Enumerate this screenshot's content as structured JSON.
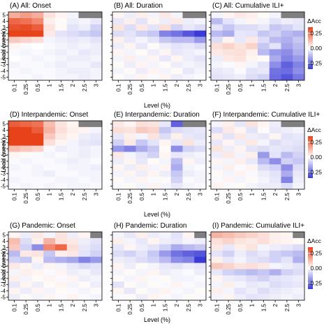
{
  "chart_data": {
    "type": "heatmap",
    "x_ticks": [
      "0.1",
      "0.25",
      "0.5",
      "1",
      "1.5",
      "2",
      "2.5",
      "3"
    ],
    "y_ticks": [
      "5",
      "4",
      "3",
      "2",
      "1",
      "0",
      "-1",
      "-2",
      "-3",
      "-4",
      "-5"
    ],
    "xlabel": "Level (%)",
    "ylabel": "Lead (week)",
    "legend": {
      "title": "ΔAcc",
      "range": [
        -0.35,
        0.35
      ],
      "ticks": [
        "0.25",
        "0.00",
        "-0.25"
      ],
      "tick_values": [
        0.25,
        0.0,
        -0.25
      ],
      "colors": {
        "low": "#3a3ad6",
        "mid": "#ffffff",
        "high": "#e8421a",
        "missing": "#7f7f7f"
      }
    },
    "panels": [
      {
        "title": "(A) All: Onset",
        "values": [
          [
            0.15,
            0.18,
            0.15,
            0.05,
            0.02,
            -0.02,
            null,
            null
          ],
          [
            0.28,
            0.26,
            0.22,
            0.03,
            0.01,
            -0.03,
            -0.02,
            -0.04
          ],
          [
            0.32,
            0.33,
            0.3,
            0.05,
            0.01,
            -0.05,
            -0.03,
            -0.08
          ],
          [
            0.36,
            0.37,
            0.35,
            0.04,
            -0.05,
            -0.06,
            -0.08,
            -0.1
          ],
          [
            0.1,
            0.08,
            0.06,
            -0.02,
            -0.03,
            -0.04,
            -0.03,
            -0.05
          ],
          [
            0.02,
            -0.01,
            0.0,
            -0.01,
            -0.02,
            -0.03,
            -0.02,
            -0.03
          ],
          [
            -0.01,
            -0.02,
            -0.01,
            -0.02,
            -0.03,
            -0.02,
            -0.04,
            -0.03
          ],
          [
            0.0,
            -0.01,
            -0.02,
            -0.01,
            -0.02,
            -0.03,
            -0.03,
            -0.02
          ],
          [
            -0.02,
            -0.01,
            -0.01,
            -0.02,
            -0.03,
            -0.02,
            -0.02,
            -0.04
          ],
          [
            -0.01,
            -0.02,
            -0.01,
            -0.01,
            -0.02,
            -0.03,
            -0.03,
            -0.02
          ],
          [
            -0.01,
            -0.01,
            -0.02,
            -0.01,
            -0.02,
            -0.02,
            -0.03,
            -0.02
          ]
        ]
      },
      {
        "title": "(B) All: Duration",
        "values": [
          [
            0.02,
            -0.03,
            0.03,
            -0.02,
            0.04,
            -0.02,
            null,
            null
          ],
          [
            -0.04,
            0.03,
            -0.05,
            0.02,
            -0.03,
            0.04,
            -0.03,
            -0.02
          ],
          [
            0.05,
            -0.06,
            0.04,
            -0.05,
            0.06,
            -0.08,
            -0.04,
            -0.06
          ],
          [
            -0.06,
            -0.05,
            -0.08,
            -0.1,
            -0.22,
            -0.25,
            -0.3,
            -0.35
          ],
          [
            0.03,
            -0.04,
            -0.02,
            -0.05,
            -0.1,
            -0.12,
            -0.12,
            -0.18
          ],
          [
            -0.03,
            0.02,
            -0.04,
            0.01,
            -0.03,
            -0.05,
            -0.04,
            -0.06
          ],
          [
            0.02,
            -0.02,
            0.01,
            -0.03,
            0.02,
            -0.04,
            -0.03,
            -0.02
          ],
          [
            -0.02,
            0.03,
            -0.02,
            0.02,
            -0.04,
            0.02,
            -0.03,
            -0.05
          ],
          [
            0.01,
            -0.03,
            0.02,
            -0.02,
            0.01,
            -0.03,
            -0.02,
            -0.03
          ],
          [
            -0.02,
            0.01,
            -0.03,
            0.02,
            -0.02,
            0.01,
            -0.04,
            -0.02
          ],
          [
            0.01,
            -0.02,
            0.02,
            -0.01,
            0.02,
            -0.03,
            -0.02,
            -0.01
          ]
        ]
      },
      {
        "title": "(C) All: Cumulative ILI+",
        "values": [
          [
            -0.02,
            0.02,
            0.04,
            0.03,
            0.01,
            -0.02,
            null,
            null
          ],
          [
            -0.12,
            -0.05,
            -0.02,
            0.02,
            -0.02,
            -0.05,
            -0.03,
            -0.04
          ],
          [
            -0.05,
            -0.1,
            -0.06,
            -0.06,
            -0.04,
            -0.1,
            -0.08,
            -0.05
          ],
          [
            -0.12,
            -0.15,
            -0.04,
            -0.05,
            -0.1,
            -0.08,
            -0.12,
            -0.14
          ],
          [
            -0.06,
            0.02,
            -0.04,
            0.04,
            -0.06,
            -0.12,
            -0.14,
            -0.1
          ],
          [
            0.06,
            0.08,
            0.05,
            0.08,
            -0.1,
            -0.05,
            -0.16,
            -0.12
          ],
          [
            0.04,
            0.05,
            0.06,
            0.03,
            -0.12,
            -0.18,
            -0.2,
            -0.14
          ],
          [
            -0.03,
            0.04,
            0.05,
            0.02,
            0.01,
            -0.15,
            -0.22,
            -0.18
          ],
          [
            -0.02,
            -0.01,
            0.02,
            -0.02,
            -0.05,
            -0.2,
            -0.28,
            -0.22
          ],
          [
            -0.04,
            -0.03,
            -0.01,
            -0.05,
            -0.04,
            -0.25,
            -0.26,
            -0.2
          ],
          [
            -0.05,
            -0.04,
            -0.03,
            -0.06,
            -0.08,
            -0.26,
            -0.3,
            -0.24
          ]
        ]
      },
      {
        "title": "(D) Interpandemic: Onset",
        "values": [
          [
            0.3,
            0.28,
            0.26,
            0.12,
            0.05,
            0.02,
            null,
            null
          ],
          [
            0.36,
            0.38,
            0.3,
            0.14,
            0.06,
            0.03,
            0.02,
            -0.02
          ],
          [
            0.38,
            0.4,
            0.36,
            0.1,
            0.04,
            0.02,
            -0.03,
            -0.04
          ],
          [
            0.4,
            0.42,
            0.38,
            0.06,
            0.02,
            -0.02,
            -0.04,
            -0.05
          ],
          [
            0.12,
            0.1,
            0.08,
            -0.01,
            -0.03,
            -0.02,
            -0.03,
            -0.02
          ],
          [
            0.02,
            0.01,
            -0.01,
            -0.02,
            -0.01,
            -0.02,
            -0.03,
            -0.02
          ],
          [
            -0.01,
            -0.02,
            -0.01,
            -0.01,
            -0.02,
            -0.03,
            -0.02,
            -0.01
          ],
          [
            -0.02,
            -0.01,
            -0.02,
            -0.01,
            -0.01,
            -0.02,
            -0.02,
            -0.03
          ],
          [
            -0.01,
            -0.01,
            -0.02,
            -0.03,
            -0.01,
            -0.01,
            -0.02,
            -0.02
          ],
          [
            -0.02,
            -0.01,
            -0.01,
            -0.01,
            -0.02,
            -0.02,
            -0.01,
            -0.02
          ],
          [
            -0.01,
            -0.02,
            -0.01,
            -0.02,
            -0.01,
            -0.02,
            -0.02,
            -0.01
          ]
        ]
      },
      {
        "title": "(E) Interpandemic: Duration",
        "values": [
          [
            0.04,
            0.02,
            0.06,
            0.05,
            -0.04,
            -0.28,
            null,
            null
          ],
          [
            0.06,
            0.05,
            0.1,
            0.08,
            -0.1,
            -0.06,
            -0.05,
            -0.04
          ],
          [
            -0.04,
            0.03,
            -0.02,
            0.05,
            -0.06,
            0.03,
            -0.04,
            -0.05
          ],
          [
            -0.08,
            0.04,
            -0.1,
            -0.05,
            0.02,
            -0.04,
            0.05,
            -0.03
          ],
          [
            -0.18,
            -0.22,
            -0.15,
            -0.1,
            0.01,
            -0.2,
            -0.08,
            -0.06
          ],
          [
            0.04,
            -0.02,
            -0.05,
            -0.08,
            0.02,
            -0.04,
            -0.03,
            -0.02
          ],
          [
            -0.03,
            0.02,
            -0.04,
            0.01,
            -0.02,
            -0.12,
            0.02,
            -0.03
          ],
          [
            0.02,
            -0.03,
            0.03,
            -0.02,
            0.02,
            -0.15,
            -0.02,
            -0.01
          ],
          [
            -0.02,
            0.02,
            -0.03,
            0.02,
            -0.03,
            -0.1,
            -0.03,
            -0.02
          ],
          [
            0.01,
            -0.02,
            0.02,
            -0.01,
            0.01,
            -0.08,
            -0.01,
            -0.02
          ],
          [
            -0.01,
            0.01,
            -0.02,
            0.02,
            -0.02,
            -0.04,
            -0.02,
            -0.01
          ]
        ]
      },
      {
        "title": "(F) Interpandemic: Cumulative ILI+",
        "values": [
          [
            -0.02,
            0.03,
            -0.04,
            0.05,
            0.02,
            -0.03,
            null,
            null
          ],
          [
            -0.06,
            0.04,
            0.02,
            -0.05,
            0.01,
            -0.04,
            -0.03,
            -0.02
          ],
          [
            0.03,
            -0.05,
            0.04,
            -0.03,
            -0.04,
            0.02,
            -0.05,
            -0.04
          ],
          [
            -0.04,
            0.02,
            -0.03,
            0.04,
            -0.02,
            -0.06,
            -0.04,
            -0.05
          ],
          [
            0.05,
            -0.03,
            0.02,
            -0.05,
            -0.06,
            -0.04,
            -0.05,
            -0.06
          ],
          [
            -0.03,
            0.04,
            -0.02,
            0.03,
            -0.18,
            -0.05,
            -0.12,
            -0.08
          ],
          [
            0.02,
            -0.02,
            0.03,
            -0.04,
            -0.12,
            -0.2,
            -0.08,
            -0.1
          ],
          [
            -0.02,
            0.03,
            -0.01,
            0.02,
            -0.06,
            -0.08,
            -0.2,
            -0.06
          ],
          [
            0.01,
            -0.02,
            0.02,
            -0.01,
            -0.03,
            -0.05,
            -0.15,
            -0.04
          ],
          [
            -0.01,
            0.02,
            -0.02,
            0.01,
            -0.02,
            -0.04,
            -0.22,
            -0.03
          ],
          [
            0.02,
            -0.01,
            0.01,
            -0.02,
            -0.03,
            -0.03,
            -0.06,
            -0.02
          ]
        ]
      },
      {
        "title": "(G) Pandemic: Onset",
        "values": [
          [
            0.02,
            -0.03,
            0.04,
            -0.02,
            0.05,
            -0.03,
            0.02,
            null
          ],
          [
            0.12,
            -0.06,
            0.03,
            0.14,
            0.05,
            0.04,
            -0.03,
            -0.05
          ],
          [
            0.1,
            -0.08,
            -0.2,
            0.22,
            0.28,
            0.06,
            -0.04,
            -0.06
          ],
          [
            -0.12,
            0.04,
            0.05,
            -0.1,
            0.03,
            0.04,
            -0.05,
            -0.08
          ],
          [
            -0.08,
            -0.1,
            0.02,
            -0.12,
            -0.14,
            -0.16,
            -0.22,
            -0.18
          ],
          [
            0.04,
            0.02,
            -0.03,
            0.02,
            -0.02,
            -0.04,
            -0.06,
            -0.05
          ],
          [
            -0.02,
            0.03,
            0.02,
            -0.01,
            0.02,
            -0.03,
            -0.02,
            -0.04
          ],
          [
            0.03,
            -0.02,
            0.01,
            0.02,
            -0.01,
            0.02,
            -0.03,
            -0.02
          ],
          [
            -0.04,
            0.02,
            -0.03,
            0.01,
            0.02,
            -0.02,
            0.01,
            -0.03
          ],
          [
            0.02,
            -0.03,
            0.02,
            -0.02,
            0.01,
            -0.01,
            -0.02,
            0.01
          ],
          [
            -0.03,
            0.01,
            -0.02,
            0.02,
            -0.01,
            0.02,
            -0.01,
            -0.02
          ]
        ]
      },
      {
        "title": "(H) Pandemic: Duration",
        "values": [
          [
            -0.02,
            -0.04,
            0.03,
            -0.03,
            -0.02,
            -0.05,
            0.02,
            null
          ],
          [
            0.03,
            -0.02,
            -0.04,
            0.02,
            -0.03,
            -0.04,
            -0.02,
            -0.03
          ],
          [
            -0.04,
            0.02,
            -0.03,
            -0.05,
            -0.08,
            -0.15,
            -0.12,
            -0.1
          ],
          [
            -0.06,
            -0.08,
            -0.05,
            -0.1,
            -0.18,
            -0.25,
            -0.28,
            -0.3
          ],
          [
            -0.03,
            -0.04,
            -0.06,
            -0.08,
            -0.12,
            -0.2,
            -0.22,
            -0.35
          ],
          [
            0.02,
            -0.03,
            0.01,
            -0.02,
            -0.04,
            -0.05,
            -0.03,
            -0.04
          ],
          [
            -0.02,
            0.01,
            -0.02,
            0.02,
            -0.03,
            -0.02,
            -0.01,
            -0.03
          ],
          [
            0.01,
            -0.02,
            0.02,
            -0.01,
            0.01,
            -0.02,
            -0.02,
            -0.01
          ],
          [
            -0.05,
            0.01,
            -0.02,
            0.01,
            -0.01,
            0.02,
            -0.01,
            -0.02
          ],
          [
            0.02,
            -0.04,
            0.01,
            -0.02,
            0.02,
            -0.01,
            -0.02,
            0.01
          ],
          [
            -0.01,
            0.01,
            -0.03,
            0.02,
            -0.01,
            -0.02,
            0.01,
            -0.01
          ]
        ]
      },
      {
        "title": "(I) Pandemic: Cumulative ILI+",
        "values": [
          [
            0.14,
            0.12,
            0.1,
            0.08,
            0.06,
            0.03,
            0.02,
            null
          ],
          [
            0.06,
            0.08,
            0.05,
            0.04,
            0.06,
            0.03,
            0.02,
            0.01
          ],
          [
            0.04,
            -0.04,
            0.03,
            0.05,
            -0.02,
            -0.03,
            -0.04,
            -0.06
          ],
          [
            -0.05,
            -0.08,
            -0.03,
            -0.06,
            -0.04,
            -0.08,
            -0.1,
            -0.12
          ],
          [
            0.03,
            -0.04,
            -0.02,
            -0.05,
            -0.06,
            -0.08,
            -0.05,
            -0.14
          ],
          [
            0.1,
            0.08,
            0.05,
            0.06,
            0.04,
            -0.02,
            -0.03,
            -0.05
          ],
          [
            -0.04,
            -0.08,
            -0.1,
            -0.12,
            -0.1,
            -0.14,
            -0.08,
            -0.06
          ],
          [
            0.02,
            -0.03,
            -0.04,
            -0.06,
            -0.08,
            -0.05,
            -0.04,
            -0.03
          ],
          [
            -0.02,
            0.03,
            -0.02,
            -0.04,
            -0.03,
            -0.06,
            -0.05,
            -0.04
          ],
          [
            0.03,
            -0.02,
            -0.05,
            -0.03,
            -0.06,
            -0.04,
            -0.03,
            -0.02
          ],
          [
            -0.02,
            0.02,
            -0.03,
            -0.05,
            -0.04,
            -0.03,
            -0.02,
            -0.03
          ]
        ]
      }
    ]
  }
}
